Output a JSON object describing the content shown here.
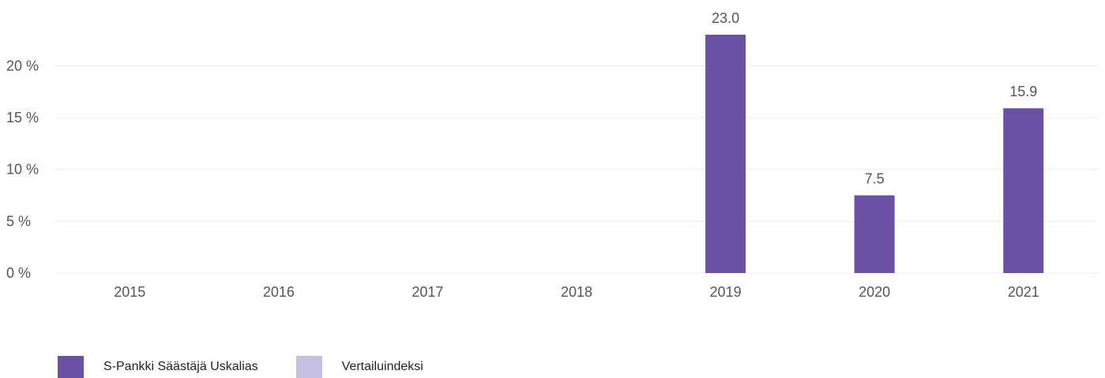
{
  "chart_data": {
    "type": "bar",
    "categories": [
      "2015",
      "2016",
      "2017",
      "2018",
      "2019",
      "2020",
      "2021"
    ],
    "series": [
      {
        "name": "S-Pankki Säästäjä Uskalias",
        "color": "#6a51a3",
        "values": [
          null,
          null,
          null,
          null,
          23.0,
          7.5,
          15.9
        ],
        "labels": [
          "",
          "",
          "",
          "",
          "23.0",
          "7.5",
          "15.9"
        ]
      },
      {
        "name": "Vertailuindeksi",
        "color": "#c6c1e2",
        "values": [
          null,
          null,
          null,
          null,
          null,
          null,
          null
        ]
      }
    ],
    "yticks": [
      0,
      5,
      10,
      15,
      20
    ],
    "ytick_labels": [
      "0 %",
      "5 %",
      "10 %",
      "15 %",
      "20 %"
    ],
    "ylim": [
      0,
      23
    ],
    "grid": true,
    "legend_position": "bottom-left"
  }
}
